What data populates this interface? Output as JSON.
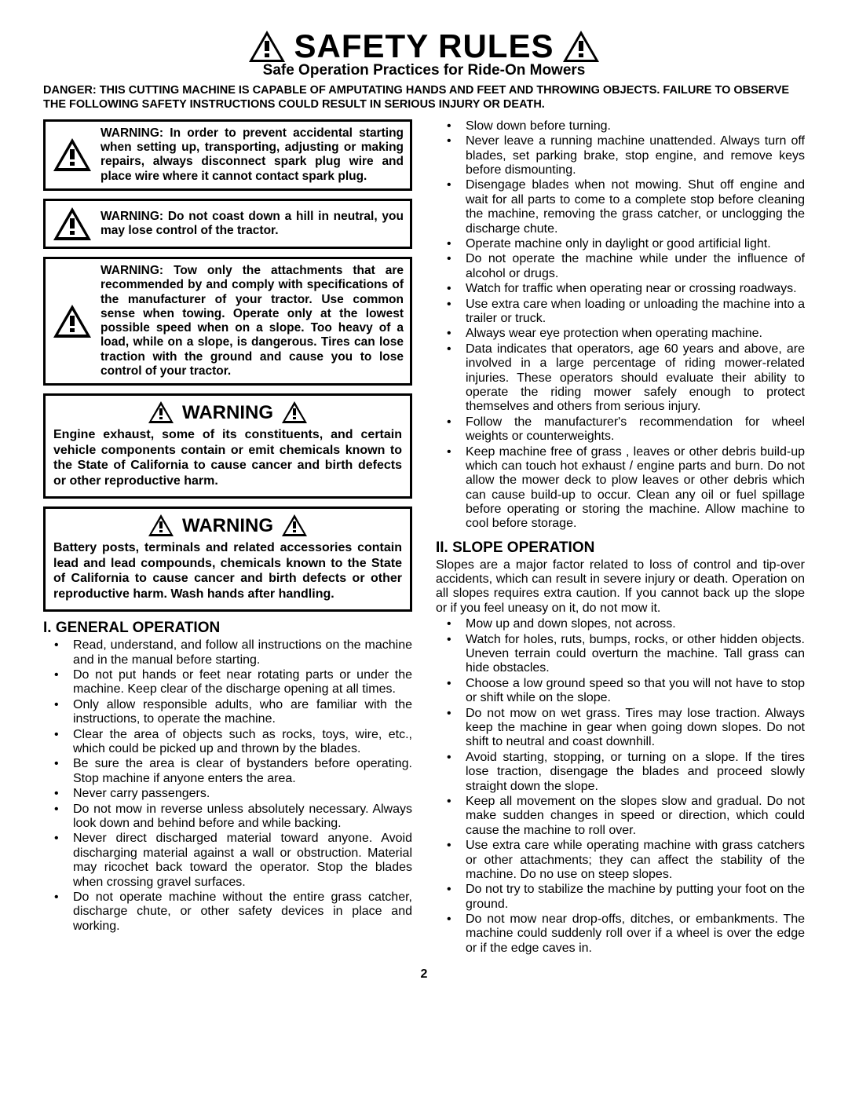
{
  "header": {
    "title": "SAFETY RULES",
    "subtitle": "Safe Operation Practices for Ride-On Mowers"
  },
  "danger": "DANGER:  THIS CUTTING MACHINE IS CAPABLE OF AMPUTATING HANDS AND FEET AND THROWING OBJECTS.  FAILURE TO OBSERVE THE FOLLOWING SAFETY INSTRUCTIONS COULD RESULT IN SERIOUS INJURY OR DEATH.",
  "left": {
    "box1": "WARNING: In order to prevent accidental starting when setting up, transporting, adjusting or making repairs, always disconnect spark plug wire and place wire where it cannot contact spark plug.",
    "box2": "WARNING: Do not coast down a hill in neutral, you may lose control of the tractor.",
    "box3": "WARNING: Tow only the attachments that are recommended by and comply with specifications of the manufacturer of your tractor. Use common sense when towing. Operate only at the lowest possible speed when on a slope.  Too heavy of a load, while on a slope, is dangerous.  Tires can lose traction with the ground and cause you to lose control of your tractor.",
    "warn_word": "WARNING",
    "warn1": "Engine exhaust, some of its constituents, and certain vehicle components contain or emit chemicals known to the State of California to cause cancer and birth defects or other reproductive harm.",
    "warn2": "Battery posts, terminals and related accessories contain lead and lead compounds, chemicals known to the State of California to cause cancer and birth defects or other reproductive harm. Wash hands after handling.",
    "sec1": "I. GENERAL OPERATION",
    "gen": [
      "Read, understand, and follow all instructions on the machine and in the manual before starting.",
      "Do not put hands or feet near rotating parts or under the machine. Keep clear of the discharge opening at all times.",
      "Only allow responsible adults, who are familiar with the instructions, to operate the machine.",
      "Clear the area of objects such as rocks, toys, wire, etc., which could be picked up and thrown by the blades.",
      "Be sure the area is clear of bystanders before operating.  Stop machine if anyone enters the area.",
      "Never carry passengers.",
      "Do not mow in reverse unless absolutely necessary. Always look down and behind before and while backing.",
      "Never direct discharged material toward anyone. Avoid discharging material against a wall or obstruction. Material may ricochet back toward the operator. Stop the blades when crossing gravel surfaces.",
      "Do not operate machine without the entire grass catcher, discharge chute, or other safety devices in place and working."
    ]
  },
  "right": {
    "gen2": [
      "Slow down before turning.",
      "Never leave a running machine unattended.  Always turn off blades, set parking brake, stop engine, and remove keys before dismounting.",
      "Disengage blades when not mowing. Shut off engine and wait for all parts to come to a complete stop before cleaning the machine, removing the grass catcher, or unclogging the discharge chute.",
      "Operate machine only in daylight or good artificial light.",
      "Do not operate the machine while under the influence of alcohol or drugs.",
      "Watch for traffic when operating near or crossing roadways.",
      "Use extra care when loading or unloading the machine into a trailer or truck.",
      "Always wear eye protection when operating machine.",
      "Data indicates that operators, age 60 years and above, are involved in a large percentage of riding mower-related injuries.  These operators should evaluate their ability to operate the riding mower safely enough to protect themselves and others from serious injury.",
      "Follow the manufacturer's recommendation for wheel weights or counterweights.",
      "Keep machine free of grass , leaves or other debris build-up which can touch hot exhaust / engine parts and burn. Do not allow the mower deck to plow leaves or other debris which can cause build-up to occur. Clean any oil or fuel spillage before operating or storing the machine. Allow machine to cool before storage."
    ],
    "sec2": "II. SLOPE OPERATION",
    "slope_intro": "Slopes are a major factor related to loss of control and tip-over accidents, which can result in severe injury or death.  Operation on all slopes requires extra caution.  If you cannot back up the slope or if you feel uneasy on it, do not mow it.",
    "slope": [
      "Mow up and down slopes, not across.",
      "Watch for holes, ruts, bumps, rocks, or other hidden objects.  Uneven terrain could overturn the machine. Tall grass can hide obstacles.",
      "Choose a low ground speed so that you will not have to stop or shift while on the slope.",
      "Do not mow on wet grass. Tires may lose traction. Always keep the machine in gear when going down slopes. Do not shift to neutral and coast downhill.",
      "Avoid starting, stopping, or turning on a slope.  If the tires lose traction,  disengage the blades and proceed slowly straight down the slope.",
      "Keep all movement on the slopes slow and gradual. Do not make sudden changes in speed or direction, which could cause the machine to roll over.",
      "Use extra care while operating machine with grass catchers or other attachments; they can affect the stability of the machine. Do no use on steep slopes.",
      "Do not  try to stabilize the machine by putting your foot on the ground.",
      "Do not mow near drop-offs, ditches, or embankments. The machine could suddenly roll over if a wheel is over the edge or if the edge caves in."
    ]
  },
  "page_number": "2",
  "icon": {
    "fill": "#000000",
    "mark": "#ffffff"
  }
}
